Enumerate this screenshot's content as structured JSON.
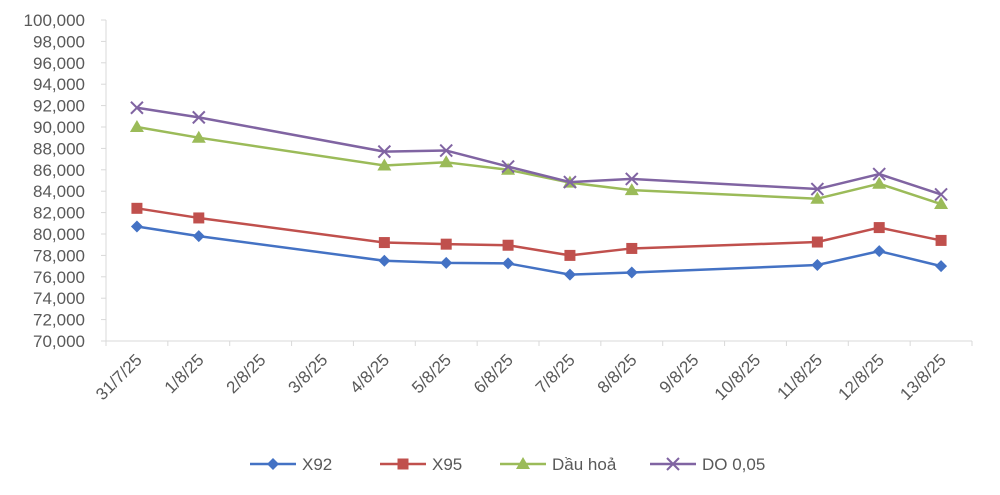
{
  "chart_data": {
    "type": "line",
    "title": "",
    "xlabel": "",
    "ylabel": "",
    "ylim": [
      70000,
      100000
    ],
    "y_step": 2000,
    "y_tick_labels": [
      "70,000",
      "72,000",
      "74,000",
      "76,000",
      "78,000",
      "80,000",
      "82,000",
      "84,000",
      "86,000",
      "88,000",
      "90,000",
      "92,000",
      "94,000",
      "96,000",
      "98,000",
      "100,000"
    ],
    "categories": [
      "31/7/25",
      "1/8/25",
      "2/8/25",
      "3/8/25",
      "4/8/25",
      "5/8/25",
      "6/8/25",
      "7/8/25",
      "8/8/25",
      "9/8/25",
      "10/8/25",
      "11/8/25",
      "12/8/25",
      "13/8/25"
    ],
    "legend_position": "bottom",
    "series": [
      {
        "name": "X92",
        "color": "#4472C4",
        "marker": "diamond",
        "values": [
          80700,
          79800,
          null,
          null,
          77500,
          77300,
          77250,
          76200,
          76400,
          null,
          null,
          77100,
          78400,
          77000
        ]
      },
      {
        "name": "X95",
        "color": "#C0504D",
        "marker": "square",
        "values": [
          82400,
          81500,
          null,
          null,
          79200,
          79050,
          78950,
          78000,
          78650,
          null,
          null,
          79250,
          80600,
          79400
        ]
      },
      {
        "name": "Dầu hoả",
        "color": "#9BBB59",
        "marker": "triangle",
        "values": [
          90000,
          89000,
          null,
          null,
          86400,
          86700,
          86000,
          84800,
          84100,
          null,
          null,
          83300,
          84700,
          82800
        ]
      },
      {
        "name": "DO 0,05",
        "color": "#8064A2",
        "marker": "x",
        "values": [
          91800,
          90900,
          null,
          null,
          87700,
          87800,
          86300,
          84850,
          85150,
          null,
          null,
          84200,
          85600,
          83700
        ]
      }
    ]
  }
}
